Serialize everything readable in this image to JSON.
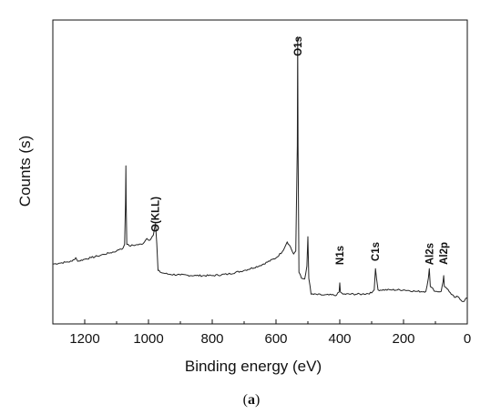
{
  "chart_data": {
    "type": "line",
    "title": "",
    "xlabel": "Binding energy (eV)",
    "ylabel": "Counts (s)",
    "xlim": [
      1300,
      0
    ],
    "x_reversed": true,
    "x_ticks": [
      1200,
      1000,
      800,
      600,
      400,
      200,
      0
    ],
    "y_ticks": [],
    "grid": false,
    "legend": "none",
    "line_color": "#222222",
    "series": [
      {
        "points": [
          [
            1300,
            0.197
          ],
          [
            1280,
            0.2
          ],
          [
            1260,
            0.203
          ],
          [
            1240,
            0.206
          ],
          [
            1228,
            0.218
          ],
          [
            1222,
            0.206
          ],
          [
            1200,
            0.213
          ],
          [
            1180,
            0.218
          ],
          [
            1160,
            0.223
          ],
          [
            1140,
            0.229
          ],
          [
            1120,
            0.234
          ],
          [
            1100,
            0.24
          ],
          [
            1090,
            0.246
          ],
          [
            1080,
            0.249
          ],
          [
            1075,
            0.262
          ],
          [
            1072,
            0.402
          ],
          [
            1071,
            0.52
          ],
          [
            1070,
            0.402
          ],
          [
            1068,
            0.262
          ],
          [
            1060,
            0.257
          ],
          [
            1040,
            0.26
          ],
          [
            1020,
            0.262
          ],
          [
            1005,
            0.281
          ],
          [
            995,
            0.276
          ],
          [
            985,
            0.292
          ],
          [
            978,
            0.33
          ],
          [
            974,
            0.265
          ],
          [
            970,
            0.176
          ],
          [
            960,
            0.169
          ],
          [
            940,
            0.164
          ],
          [
            900,
            0.161
          ],
          [
            850,
            0.159
          ],
          [
            800,
            0.159
          ],
          [
            750,
            0.164
          ],
          [
            700,
            0.176
          ],
          [
            650,
            0.192
          ],
          [
            600,
            0.217
          ],
          [
            580,
            0.238
          ],
          [
            565,
            0.27
          ],
          [
            555,
            0.254
          ],
          [
            545,
            0.23
          ],
          [
            538,
            0.24
          ],
          [
            533,
            0.586
          ],
          [
            532,
            0.945
          ],
          [
            531,
            0.586
          ],
          [
            528,
            0.17
          ],
          [
            520,
            0.15
          ],
          [
            510,
            0.148
          ],
          [
            503,
            0.19
          ],
          [
            500,
            0.287
          ],
          [
            497,
            0.15
          ],
          [
            490,
            0.098
          ],
          [
            450,
            0.095
          ],
          [
            410,
            0.095
          ],
          [
            402,
            0.105
          ],
          [
            400,
            0.135
          ],
          [
            398,
            0.105
          ],
          [
            390,
            0.098
          ],
          [
            330,
            0.098
          ],
          [
            300,
            0.102
          ],
          [
            292,
            0.112
          ],
          [
            288,
            0.182
          ],
          [
            285,
            0.151
          ],
          [
            280,
            0.112
          ],
          [
            240,
            0.112
          ],
          [
            200,
            0.112
          ],
          [
            160,
            0.107
          ],
          [
            130,
            0.107
          ],
          [
            122,
            0.151
          ],
          [
            119,
            0.182
          ],
          [
            116,
            0.123
          ],
          [
            100,
            0.107
          ],
          [
            82,
            0.107
          ],
          [
            76,
            0.139
          ],
          [
            74,
            0.159
          ],
          [
            72,
            0.123
          ],
          [
            60,
            0.113
          ],
          [
            50,
            0.097
          ],
          [
            40,
            0.087
          ],
          [
            30,
            0.09
          ],
          [
            20,
            0.078
          ],
          [
            10,
            0.074
          ],
          [
            5,
            0.084
          ],
          [
            0,
            0.086
          ]
        ]
      }
    ],
    "annotations": [
      {
        "text": "O1s",
        "x": 532
      },
      {
        "text": "O(KLL)",
        "x": 978
      },
      {
        "text": "N1s",
        "x": 400
      },
      {
        "text": "C1s",
        "x": 288
      },
      {
        "text": "Al2s",
        "x": 119
      },
      {
        "text": "Al2p",
        "x": 74
      }
    ]
  },
  "figure_label": {
    "open": "(",
    "letter": "a",
    "close": ")"
  }
}
